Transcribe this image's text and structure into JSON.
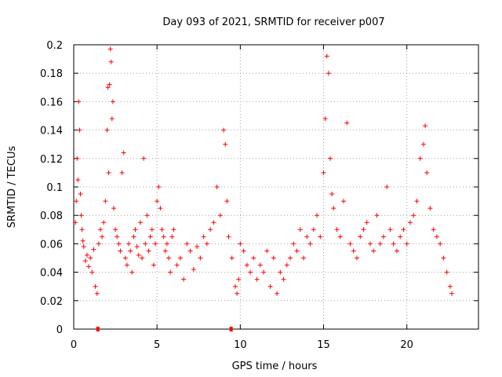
{
  "chart_data": {
    "type": "scatter",
    "title": "Day 093 of 2021, SRMTID for receiver p007",
    "xlabel": "GPS time / hours",
    "ylabel": "SRMTID / TECUs",
    "xlim": [
      0,
      24.3
    ],
    "ylim": [
      0,
      0.2
    ],
    "xticks": [
      0,
      5,
      10,
      15,
      20
    ],
    "yticks": [
      0,
      0.02,
      0.04,
      0.06,
      0.08,
      0.1,
      0.12,
      0.14,
      0.16,
      0.18,
      0.2
    ],
    "xtick_labels": [
      "0",
      "5",
      "10",
      "15",
      "20"
    ],
    "ytick_labels": [
      "0",
      "0.02",
      "0.04",
      "0.06",
      "0.08",
      "0.1",
      "0.12",
      "0.14",
      "0.16",
      "0.18",
      "0.2"
    ],
    "grid": true,
    "marker": "+",
    "color": "#ff0000",
    "series": [
      {
        "name": "SRMTID",
        "points": [
          [
            0.1,
            0.075
          ],
          [
            0.15,
            0.09
          ],
          [
            0.2,
            0.12
          ],
          [
            0.25,
            0.105
          ],
          [
            0.3,
            0.16
          ],
          [
            0.35,
            0.14
          ],
          [
            0.4,
            0.095
          ],
          [
            0.45,
            0.08
          ],
          [
            0.5,
            0.07
          ],
          [
            0.55,
            0.062
          ],
          [
            0.6,
            0.058
          ],
          [
            0.7,
            0.048
          ],
          [
            0.8,
            0.052
          ],
          [
            0.9,
            0.044
          ],
          [
            1.0,
            0.05
          ],
          [
            1.1,
            0.04
          ],
          [
            1.2,
            0.056
          ],
          [
            1.3,
            0.03
          ],
          [
            1.4,
            0.025
          ],
          [
            1.5,
            0.06
          ],
          [
            1.6,
            0.07
          ],
          [
            1.7,
            0.065
          ],
          [
            1.8,
            0.075
          ],
          [
            1.9,
            0.09
          ],
          [
            2.0,
            0.14
          ],
          [
            2.05,
            0.17
          ],
          [
            2.1,
            0.11
          ],
          [
            2.15,
            0.172
          ],
          [
            2.2,
            0.197
          ],
          [
            2.25,
            0.188
          ],
          [
            2.3,
            0.148
          ],
          [
            2.35,
            0.16
          ],
          [
            2.4,
            0.085
          ],
          [
            2.5,
            0.07
          ],
          [
            2.6,
            0.065
          ],
          [
            2.7,
            0.06
          ],
          [
            2.8,
            0.055
          ],
          [
            2.9,
            0.11
          ],
          [
            3.0,
            0.124
          ],
          [
            3.1,
            0.05
          ],
          [
            3.2,
            0.045
          ],
          [
            3.3,
            0.06
          ],
          [
            3.4,
            0.055
          ],
          [
            3.5,
            0.04
          ],
          [
            3.6,
            0.065
          ],
          [
            3.7,
            0.07
          ],
          [
            3.8,
            0.058
          ],
          [
            3.9,
            0.052
          ],
          [
            4.0,
            0.075
          ],
          [
            4.1,
            0.05
          ],
          [
            4.2,
            0.12
          ],
          [
            4.3,
            0.06
          ],
          [
            4.4,
            0.08
          ],
          [
            4.5,
            0.055
          ],
          [
            4.6,
            0.065
          ],
          [
            4.7,
            0.07
          ],
          [
            4.8,
            0.045
          ],
          [
            4.9,
            0.06
          ],
          [
            5.0,
            0.09
          ],
          [
            5.1,
            0.1
          ],
          [
            5.2,
            0.085
          ],
          [
            5.3,
            0.07
          ],
          [
            5.4,
            0.065
          ],
          [
            5.5,
            0.055
          ],
          [
            5.6,
            0.06
          ],
          [
            5.7,
            0.05
          ],
          [
            5.8,
            0.04
          ],
          [
            5.9,
            0.065
          ],
          [
            6.0,
            0.07
          ],
          [
            6.2,
            0.045
          ],
          [
            6.4,
            0.05
          ],
          [
            6.6,
            0.035
          ],
          [
            6.8,
            0.06
          ],
          [
            7.0,
            0.055
          ],
          [
            7.2,
            0.042
          ],
          [
            7.4,
            0.058
          ],
          [
            7.6,
            0.05
          ],
          [
            7.8,
            0.065
          ],
          [
            8.0,
            0.06
          ],
          [
            8.2,
            0.07
          ],
          [
            8.4,
            0.075
          ],
          [
            8.6,
            0.1
          ],
          [
            8.8,
            0.08
          ],
          [
            9.0,
            0.14
          ],
          [
            9.1,
            0.13
          ],
          [
            9.2,
            0.09
          ],
          [
            9.3,
            0.065
          ],
          [
            9.5,
            0.05
          ],
          [
            9.7,
            0.03
          ],
          [
            9.8,
            0.025
          ],
          [
            9.9,
            0.035
          ],
          [
            10.0,
            0.06
          ],
          [
            10.2,
            0.055
          ],
          [
            10.4,
            0.045
          ],
          [
            10.6,
            0.04
          ],
          [
            10.8,
            0.05
          ],
          [
            11.0,
            0.035
          ],
          [
            11.2,
            0.045
          ],
          [
            11.4,
            0.04
          ],
          [
            11.6,
            0.055
          ],
          [
            11.8,
            0.03
          ],
          [
            12.0,
            0.05
          ],
          [
            12.2,
            0.025
          ],
          [
            12.4,
            0.04
          ],
          [
            12.6,
            0.035
          ],
          [
            12.8,
            0.045
          ],
          [
            13.0,
            0.05
          ],
          [
            13.2,
            0.06
          ],
          [
            13.4,
            0.055
          ],
          [
            13.6,
            0.07
          ],
          [
            13.8,
            0.05
          ],
          [
            14.0,
            0.065
          ],
          [
            14.2,
            0.06
          ],
          [
            14.4,
            0.07
          ],
          [
            14.6,
            0.08
          ],
          [
            14.8,
            0.065
          ],
          [
            15.0,
            0.11
          ],
          [
            15.1,
            0.148
          ],
          [
            15.2,
            0.192
          ],
          [
            15.3,
            0.18
          ],
          [
            15.4,
            0.12
          ],
          [
            15.5,
            0.095
          ],
          [
            15.6,
            0.085
          ],
          [
            15.8,
            0.07
          ],
          [
            16.0,
            0.065
          ],
          [
            16.2,
            0.09
          ],
          [
            16.4,
            0.145
          ],
          [
            16.6,
            0.06
          ],
          [
            16.8,
            0.055
          ],
          [
            17.0,
            0.05
          ],
          [
            17.2,
            0.065
          ],
          [
            17.4,
            0.07
          ],
          [
            17.6,
            0.075
          ],
          [
            17.8,
            0.06
          ],
          [
            18.0,
            0.055
          ],
          [
            18.2,
            0.08
          ],
          [
            18.4,
            0.06
          ],
          [
            18.6,
            0.065
          ],
          [
            18.8,
            0.1
          ],
          [
            19.0,
            0.07
          ],
          [
            19.2,
            0.06
          ],
          [
            19.4,
            0.055
          ],
          [
            19.6,
            0.065
          ],
          [
            19.8,
            0.07
          ],
          [
            20.0,
            0.06
          ],
          [
            20.2,
            0.075
          ],
          [
            20.4,
            0.08
          ],
          [
            20.6,
            0.09
          ],
          [
            20.8,
            0.12
          ],
          [
            21.0,
            0.13
          ],
          [
            21.1,
            0.143
          ],
          [
            21.2,
            0.11
          ],
          [
            21.4,
            0.085
          ],
          [
            21.6,
            0.07
          ],
          [
            21.8,
            0.065
          ],
          [
            22.0,
            0.06
          ],
          [
            22.2,
            0.05
          ],
          [
            22.4,
            0.04
          ],
          [
            22.6,
            0.03
          ],
          [
            22.7,
            0.025
          ]
        ],
        "baseline_markers": [
          [
            1.45,
            0
          ],
          [
            9.45,
            0
          ]
        ]
      }
    ]
  }
}
